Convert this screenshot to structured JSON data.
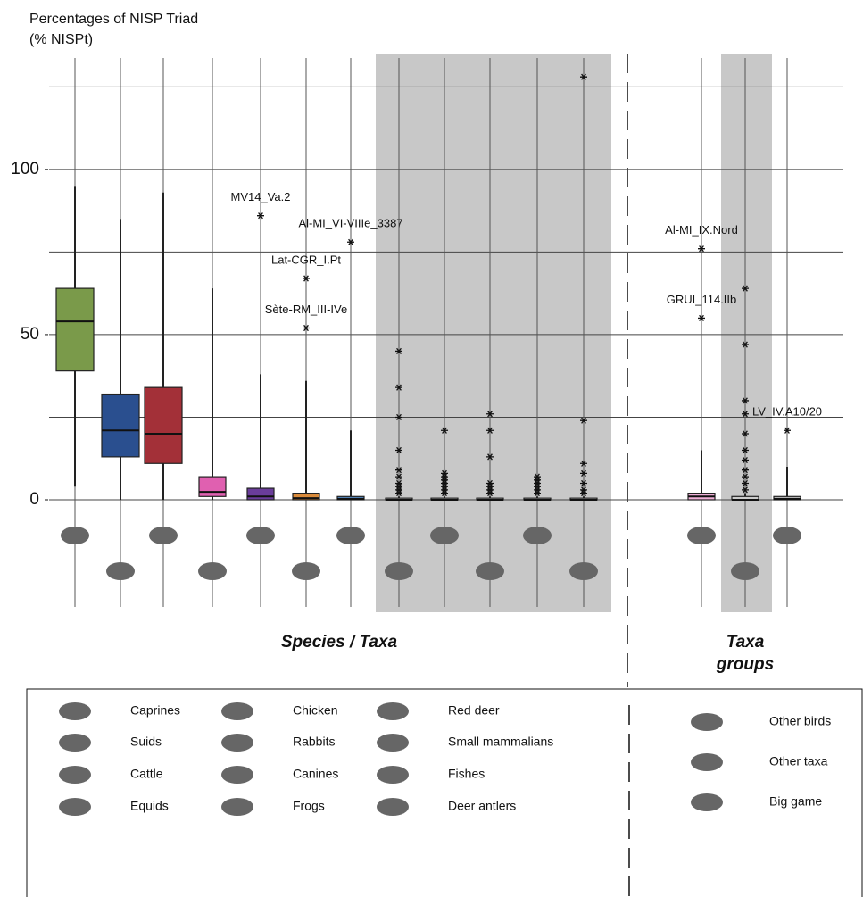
{
  "chart_data": {
    "type": "box",
    "ylabel": [
      "Percentages of NISP Triad",
      "(% NISPt)"
    ],
    "ylim": [
      0,
      134
    ],
    "yticks": [
      0,
      50,
      100
    ],
    "ygrid": [
      0,
      25,
      50,
      75,
      100,
      125
    ],
    "groups": [
      [
        "Species / Taxa"
      ],
      [
        "Taxa",
        "groups"
      ]
    ],
    "boxes": [
      {
        "name": "Caprines",
        "color": "#7a9a4a",
        "whisker_low": 4,
        "q1": 39,
        "median": 54,
        "q3": 64,
        "whisker_high": 95,
        "outliers": [],
        "labeled_outliers": []
      },
      {
        "name": "Suids",
        "color": "#2a4f8f",
        "whisker_low": 0,
        "q1": 13,
        "median": 21,
        "q3": 32,
        "whisker_high": 85,
        "outliers": [],
        "labeled_outliers": []
      },
      {
        "name": "Cattle",
        "color": "#a33038",
        "whisker_low": 0,
        "q1": 11,
        "median": 20,
        "q3": 34,
        "whisker_high": 93,
        "outliers": [],
        "labeled_outliers": []
      },
      {
        "name": "Chicken",
        "color": "#e060b0",
        "whisker_low": 0,
        "q1": 1,
        "median": 2.4,
        "q3": 7,
        "whisker_high": 64,
        "outliers": [],
        "labeled_outliers": []
      },
      {
        "name": "Equids",
        "color": "#6a3d9a",
        "whisker_low": 0,
        "q1": 0,
        "median": 1,
        "q3": 3.5,
        "whisker_high": 38,
        "outliers": [],
        "labeled_outliers": [
          {
            "value": 86,
            "label": "MV14_Va.2"
          }
        ]
      },
      {
        "name": "Rabbits",
        "color": "#d98a3a",
        "whisker_low": 0,
        "q1": 0,
        "median": 0.5,
        "q3": 2,
        "whisker_high": 36,
        "outliers": [],
        "labeled_outliers": [
          {
            "value": 67,
            "label": "Lat-CGR_I.Pt"
          },
          {
            "value": 52,
            "label": "Sète-RM_III-IVe"
          }
        ]
      },
      {
        "name": "Canines",
        "color": "#5a8fc8",
        "whisker_low": 0,
        "q1": 0,
        "median": 0.3,
        "q3": 1,
        "whisker_high": 21,
        "outliers": [],
        "labeled_outliers": [
          {
            "value": 78,
            "label": "Al-MI_VI-VIIIe_3387"
          }
        ]
      },
      {
        "name": "Frogs",
        "color": "#cccccc",
        "whisker_low": 0,
        "q1": 0,
        "median": 0,
        "q3": 0.5,
        "whisker_high": 1,
        "shaded": true,
        "outliers": [
          45,
          34,
          25,
          15,
          9,
          7,
          5,
          4,
          3,
          2
        ],
        "labeled_outliers": []
      },
      {
        "name": "Red deer",
        "color": "#cccccc",
        "whisker_low": 0,
        "q1": 0,
        "median": 0,
        "q3": 0.5,
        "whisker_high": 1,
        "shaded": true,
        "outliers": [
          21,
          8,
          7,
          6,
          5,
          4,
          3,
          2
        ],
        "labeled_outliers": []
      },
      {
        "name": "Small mammalians",
        "color": "#cccccc",
        "whisker_low": 0,
        "q1": 0,
        "median": 0,
        "q3": 0.5,
        "whisker_high": 1,
        "shaded": true,
        "outliers": [
          26,
          21,
          13,
          5,
          4,
          3,
          2
        ],
        "labeled_outliers": []
      },
      {
        "name": "Fishes",
        "color": "#cccccc",
        "whisker_low": 0,
        "q1": 0,
        "median": 0,
        "q3": 0.5,
        "whisker_high": 1,
        "shaded": true,
        "outliers": [
          7,
          6,
          5,
          4,
          3,
          2
        ],
        "labeled_outliers": []
      },
      {
        "name": "Deer antlers",
        "color": "#cccccc",
        "whisker_low": 0,
        "q1": 0,
        "median": 0,
        "q3": 0.5,
        "whisker_high": 1,
        "shaded": true,
        "outliers": [
          128,
          24,
          11,
          8,
          5,
          3,
          2
        ],
        "labeled_outliers": []
      },
      {
        "name": "Other birds",
        "color": "#f0b0d8",
        "whisker_low": 0,
        "q1": 0,
        "median": 1,
        "q3": 2,
        "whisker_high": 15,
        "outliers": [],
        "labeled_outliers": [
          {
            "value": 76,
            "label": "Al-MI_IX.Nord"
          },
          {
            "value": 55,
            "label": "GRUI_114.IIb"
          }
        ]
      },
      {
        "name": "Other taxa",
        "color": "#cccccc",
        "whisker_low": 0,
        "q1": 0,
        "median": 0,
        "q3": 1,
        "whisker_high": 2,
        "shaded": true,
        "outliers": [
          64,
          47,
          30,
          26,
          20,
          15,
          12,
          9,
          7,
          5,
          3
        ],
        "labeled_outliers": []
      },
      {
        "name": "Big game",
        "color": "#cccccc",
        "whisker_low": 0,
        "q1": 0,
        "median": 0.3,
        "q3": 1,
        "whisker_high": 10,
        "outliers": [],
        "labeled_outliers": [
          {
            "value": 21,
            "label": "LV_IV.A10/20"
          }
        ]
      }
    ]
  }
}
